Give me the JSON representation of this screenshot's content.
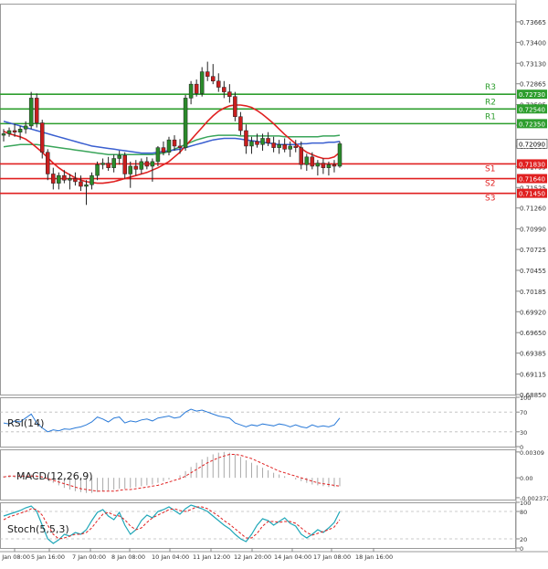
{
  "chart_data": {
    "type": "candlestick",
    "price_axis": {
      "ticks": [
        "0.73665",
        "0.73400",
        "0.73130",
        "0.72865",
        "0.72595",
        "0.72330",
        "0.72060",
        "0.71795",
        "0.71525",
        "0.71260",
        "0.70990",
        "0.70725",
        "0.70455",
        "0.70185",
        "0.69920",
        "0.69650",
        "0.69385",
        "0.69115",
        "0.68850"
      ],
      "current_price": "0.72090",
      "ylim": [
        0.6885,
        0.739
      ]
    },
    "levels": [
      {
        "name": "R3",
        "value": "0.72730",
        "num": 0.7273,
        "color": "#2e9e2e"
      },
      {
        "name": "R2",
        "value": "0.72540",
        "num": 0.7254,
        "color": "#2e9e2e"
      },
      {
        "name": "R1",
        "value": "0.72350",
        "num": 0.7235,
        "color": "#2e9e2e"
      },
      {
        "name": "S1",
        "value": "0.71830",
        "num": 0.7183,
        "color": "#e02020"
      },
      {
        "name": "S2",
        "value": "0.71640",
        "num": 0.7164,
        "color": "#e02020"
      },
      {
        "name": "S3",
        "value": "0.71450",
        "num": 0.7145,
        "color": "#e02020"
      }
    ],
    "time_labels": [
      "4 Jan 08:00",
      "5 Jan 16:00",
      "7 Jan 00:00",
      "8 Jan 08:00",
      "10 Jan 04:00",
      "11 Jan 12:00",
      "12 Jan 20:00",
      "14 Jan 04:00",
      "17 Jan 08:00",
      "18 Jan 16:00"
    ],
    "candles": [
      [
        0.722,
        0.7228,
        0.7212,
        0.7222
      ],
      [
        0.7222,
        0.723,
        0.7218,
        0.7226
      ],
      [
        0.7226,
        0.7235,
        0.7218,
        0.7224
      ],
      [
        0.7224,
        0.7232,
        0.7214,
        0.7228
      ],
      [
        0.7228,
        0.7238,
        0.7222,
        0.7232
      ],
      [
        0.7232,
        0.7276,
        0.7228,
        0.7268
      ],
      [
        0.7268,
        0.7274,
        0.723,
        0.7236
      ],
      [
        0.7236,
        0.724,
        0.719,
        0.7198
      ],
      [
        0.7198,
        0.7202,
        0.7162,
        0.717
      ],
      [
        0.717,
        0.7178,
        0.715,
        0.7158
      ],
      [
        0.7158,
        0.7172,
        0.715,
        0.7168
      ],
      [
        0.7168,
        0.7175,
        0.7158,
        0.7162
      ],
      [
        0.7162,
        0.717,
        0.715,
        0.7164
      ],
      [
        0.7164,
        0.7172,
        0.7155,
        0.716
      ],
      [
        0.716,
        0.7168,
        0.7148,
        0.7154
      ],
      [
        0.7154,
        0.7162,
        0.713,
        0.7156
      ],
      [
        0.7156,
        0.7172,
        0.715,
        0.7168
      ],
      [
        0.7168,
        0.7186,
        0.7162,
        0.7182
      ],
      [
        0.7182,
        0.719,
        0.7176,
        0.7184
      ],
      [
        0.7184,
        0.7192,
        0.7174,
        0.7178
      ],
      [
        0.7178,
        0.7195,
        0.7172,
        0.719
      ],
      [
        0.719,
        0.72,
        0.7182,
        0.7194
      ],
      [
        0.7194,
        0.7198,
        0.7164,
        0.717
      ],
      [
        0.717,
        0.7186,
        0.7152,
        0.718
      ],
      [
        0.718,
        0.7188,
        0.7168,
        0.7176
      ],
      [
        0.7176,
        0.719,
        0.717,
        0.7186
      ],
      [
        0.7186,
        0.7192,
        0.7176,
        0.718
      ],
      [
        0.718,
        0.719,
        0.716,
        0.7186
      ],
      [
        0.7186,
        0.7206,
        0.718,
        0.7204
      ],
      [
        0.7204,
        0.7212,
        0.7194,
        0.7198
      ],
      [
        0.7198,
        0.7218,
        0.7194,
        0.7214
      ],
      [
        0.7214,
        0.722,
        0.72,
        0.7206
      ],
      [
        0.7206,
        0.7215,
        0.7196,
        0.7204
      ],
      [
        0.7204,
        0.7272,
        0.72,
        0.7268
      ],
      [
        0.7268,
        0.729,
        0.726,
        0.7286
      ],
      [
        0.7286,
        0.7292,
        0.727,
        0.7274
      ],
      [
        0.7274,
        0.7308,
        0.727,
        0.7302
      ],
      [
        0.7302,
        0.7315,
        0.729,
        0.7296
      ],
      [
        0.7296,
        0.7312,
        0.7286,
        0.729
      ],
      [
        0.729,
        0.73,
        0.7276,
        0.7282
      ],
      [
        0.7282,
        0.729,
        0.7268,
        0.7276
      ],
      [
        0.7276,
        0.7286,
        0.7262,
        0.727
      ],
      [
        0.727,
        0.7276,
        0.7238,
        0.7244
      ],
      [
        0.7244,
        0.725,
        0.722,
        0.7226
      ],
      [
        0.7226,
        0.7234,
        0.7196,
        0.7206
      ],
      [
        0.7206,
        0.7218,
        0.7196,
        0.7212
      ],
      [
        0.7212,
        0.7222,
        0.7204,
        0.7208
      ],
      [
        0.7208,
        0.7222,
        0.72,
        0.7216
      ],
      [
        0.7216,
        0.7224,
        0.7206,
        0.721
      ],
      [
        0.721,
        0.7218,
        0.7198,
        0.7204
      ],
      [
        0.7204,
        0.7214,
        0.7196,
        0.7208
      ],
      [
        0.7208,
        0.7216,
        0.7198,
        0.7202
      ],
      [
        0.7202,
        0.7212,
        0.7192,
        0.7206
      ],
      [
        0.7206,
        0.7214,
        0.7198,
        0.7204
      ],
      [
        0.7204,
        0.7212,
        0.7176,
        0.7182
      ],
      [
        0.7182,
        0.7196,
        0.7174,
        0.7192
      ],
      [
        0.7192,
        0.7198,
        0.7176,
        0.718
      ],
      [
        0.718,
        0.7188,
        0.7168,
        0.7184
      ],
      [
        0.7184,
        0.719,
        0.717,
        0.7178
      ],
      [
        0.7178,
        0.7186,
        0.7168,
        0.7182
      ],
      [
        0.7182,
        0.7188,
        0.7172,
        0.718
      ],
      [
        0.718,
        0.7212,
        0.7178,
        0.7209
      ]
    ],
    "ma_fast": [
      0.7225,
      0.7222,
      0.722,
      0.7218,
      0.7215,
      0.721,
      0.7204,
      0.7198,
      0.7191,
      0.7184,
      0.7178,
      0.7173,
      0.7169,
      0.7165,
      0.7162,
      0.716,
      0.7159,
      0.7158,
      0.7158,
      0.7159,
      0.716,
      0.7162,
      0.7164,
      0.7166,
      0.7168,
      0.717,
      0.7172,
      0.7175,
      0.7178,
      0.7182,
      0.7186,
      0.7192,
      0.7198,
      0.7206,
      0.7214,
      0.7222,
      0.723,
      0.7238,
      0.7245,
      0.7251,
      0.7255,
      0.7258,
      0.7259,
      0.7259,
      0.7258,
      0.7256,
      0.7252,
      0.7247,
      0.7241,
      0.7235,
      0.7228,
      0.7221,
      0.7215,
      0.7209,
      0.7203,
      0.7198,
      0.7195,
      0.7192,
      0.719,
      0.719,
      0.7192,
      0.7198
    ],
    "ma_mid": [
      0.7238,
      0.7236,
      0.7234,
      0.7232,
      0.723,
      0.7228,
      0.7226,
      0.7224,
      0.7222,
      0.722,
      0.7218,
      0.7216,
      0.7214,
      0.7212,
      0.721,
      0.7208,
      0.7206,
      0.7205,
      0.7204,
      0.7203,
      0.7202,
      0.7201,
      0.72,
      0.7199,
      0.7198,
      0.7197,
      0.7197,
      0.7197,
      0.7198,
      0.7199,
      0.72,
      0.7201,
      0.7202,
      0.7204,
      0.7206,
      0.7208,
      0.721,
      0.7212,
      0.7214,
      0.7215,
      0.7216,
      0.7216,
      0.7216,
      0.7215,
      0.7214,
      0.7213,
      0.7212,
      0.7211,
      0.721,
      0.7209,
      0.7208,
      0.7208,
      0.7208,
      0.7208,
      0.7209,
      0.7209,
      0.721,
      0.721,
      0.721,
      0.7211,
      0.7211,
      0.7212
    ],
    "ma_slow": [
      0.7205,
      0.7206,
      0.7207,
      0.7208,
      0.7208,
      0.7208,
      0.7208,
      0.7207,
      0.7206,
      0.7205,
      0.7204,
      0.7203,
      0.7202,
      0.7201,
      0.72,
      0.7199,
      0.7198,
      0.7197,
      0.7196,
      0.7195,
      0.7195,
      0.7195,
      0.7195,
      0.7195,
      0.7195,
      0.7195,
      0.7195,
      0.7195,
      0.7196,
      0.7197,
      0.7199,
      0.7202,
      0.7205,
      0.7208,
      0.7211,
      0.7214,
      0.7216,
      0.7218,
      0.7219,
      0.722,
      0.722,
      0.722,
      0.722,
      0.7219,
      0.7219,
      0.7219,
      0.7219,
      0.7219,
      0.7219,
      0.7219,
      0.7219,
      0.7218,
      0.7218,
      0.7218,
      0.7218,
      0.7218,
      0.7218,
      0.7218,
      0.7219,
      0.7219,
      0.7219,
      0.722
    ],
    "rsi": {
      "label": "RSI(14)",
      "ticks": [
        "100",
        "70",
        "30",
        "0"
      ],
      "range": [
        0,
        100
      ],
      "values": [
        48,
        46,
        52,
        50,
        58,
        66,
        48,
        38,
        30,
        34,
        32,
        36,
        35,
        38,
        40,
        44,
        50,
        60,
        56,
        50,
        58,
        60,
        48,
        52,
        50,
        54,
        56,
        52,
        58,
        60,
        62,
        58,
        60,
        70,
        76,
        72,
        74,
        70,
        66,
        62,
        60,
        58,
        48,
        44,
        40,
        44,
        42,
        46,
        44,
        42,
        46,
        44,
        40,
        44,
        40,
        38,
        44,
        40,
        42,
        40,
        44,
        58
      ]
    },
    "macd": {
      "label": "MACD(12,26,9)",
      "ticks": [
        "0.00309",
        "0.00",
        "-0.002372"
      ],
      "range": [
        -0.0026,
        0.0034
      ],
      "hist": [
        0.0002,
        0.0003,
        0.0002,
        0.0002,
        0.0002,
        0.0004,
        0.0003,
        0.0001,
        -0.0003,
        -0.0006,
        -0.0009,
        -0.0012,
        -0.0014,
        -0.0016,
        -0.0017,
        -0.0018,
        -0.0018,
        -0.0017,
        -0.0016,
        -0.0015,
        -0.0014,
        -0.0013,
        -0.0013,
        -0.0012,
        -0.0011,
        -0.001,
        -0.0009,
        -0.0008,
        -0.0006,
        -0.0004,
        -0.0002,
        0.0,
        0.0003,
        0.0008,
        0.0013,
        0.0018,
        0.0022,
        0.0025,
        0.0028,
        0.003,
        0.0031,
        0.003,
        0.0028,
        0.0025,
        0.0021,
        0.0018,
        0.0015,
        0.0012,
        0.0009,
        0.0006,
        0.0004,
        0.0002,
        0.0,
        -0.0002,
        -0.0004,
        -0.0006,
        -0.0008,
        -0.0009,
        -0.001,
        -0.0011,
        -0.0011,
        -0.001
      ],
      "signal": [
        0.0001,
        0.0002,
        0.0002,
        0.0002,
        0.0002,
        0.0002,
        0.0002,
        0.0001,
        -0.0001,
        -0.0003,
        -0.0005,
        -0.0007,
        -0.0009,
        -0.0011,
        -0.0013,
        -0.0014,
        -0.0015,
        -0.0016,
        -0.0016,
        -0.0016,
        -0.0016,
        -0.0015,
        -0.0014,
        -0.0014,
        -0.0013,
        -0.0012,
        -0.0011,
        -0.001,
        -0.0009,
        -0.0007,
        -0.0005,
        -0.0003,
        -0.0001,
        0.0002,
        0.0006,
        0.001,
        0.0014,
        0.0018,
        0.0021,
        0.0024,
        0.0026,
        0.0028,
        0.0028,
        0.0027,
        0.0025,
        0.0023,
        0.002,
        0.0017,
        0.0014,
        0.0011,
        0.0008,
        0.0006,
        0.0004,
        0.0002,
        0.0,
        -0.0002,
        -0.0004,
        -0.0006,
        -0.0007,
        -0.0008,
        -0.0009,
        -0.001
      ]
    },
    "stoch": {
      "label": "Stoch(5,5,3)",
      "ticks": [
        "100",
        "80",
        "20",
        "0"
      ],
      "range": [
        0,
        100
      ],
      "k": [
        70,
        74,
        78,
        82,
        88,
        92,
        80,
        50,
        20,
        10,
        18,
        30,
        26,
        34,
        30,
        40,
        60,
        78,
        84,
        70,
        62,
        78,
        50,
        30,
        40,
        60,
        72,
        66,
        80,
        84,
        90,
        82,
        74,
        86,
        94,
        90,
        86,
        80,
        70,
        60,
        50,
        42,
        30,
        20,
        14,
        30,
        50,
        64,
        60,
        50,
        58,
        66,
        54,
        48,
        30,
        22,
        30,
        40,
        34,
        44,
        56,
        80
      ],
      "d": [
        62,
        68,
        72,
        76,
        80,
        86,
        84,
        72,
        50,
        30,
        20,
        22,
        26,
        30,
        30,
        34,
        44,
        60,
        74,
        78,
        72,
        70,
        62,
        48,
        40,
        44,
        56,
        66,
        72,
        78,
        84,
        86,
        82,
        80,
        84,
        90,
        90,
        86,
        78,
        70,
        60,
        52,
        42,
        32,
        22,
        22,
        32,
        48,
        58,
        58,
        56,
        58,
        58,
        54,
        44,
        34,
        28,
        32,
        36,
        40,
        46,
        62
      ]
    }
  }
}
